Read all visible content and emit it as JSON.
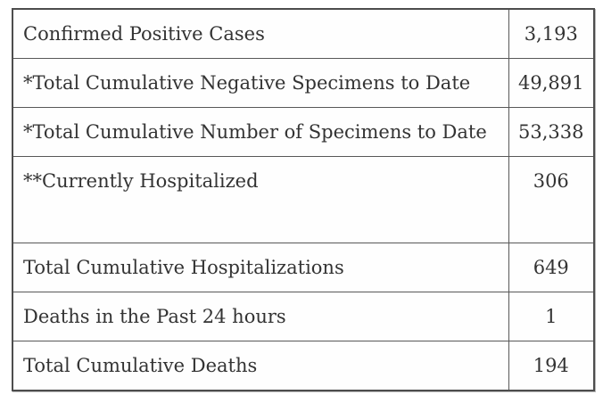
{
  "table": {
    "description": "case-statistics-table",
    "columns": [
      "metric",
      "count"
    ],
    "rows": [
      {
        "label": "Confirmed Positive Cases",
        "value": "3,193",
        "tall": false
      },
      {
        "label": "*Total Cumulative Negative Specimens to Date",
        "value": "49,891",
        "tall": false
      },
      {
        "label": "*Total Cumulative Number of Specimens to Date",
        "value": "53,338",
        "tall": false
      },
      {
        "label": "**Currently Hospitalized",
        "value": "306",
        "tall": true
      },
      {
        "label": "Total Cumulative Hospitalizations",
        "value": "649",
        "tall": false
      },
      {
        "label": "Deaths in the Past 24 hours",
        "value": "1",
        "tall": false
      },
      {
        "label": "Total Cumulative Deaths",
        "value": "194",
        "tall": false
      }
    ],
    "colors": {
      "text": "#333333",
      "border_outer": "#4d4d4d",
      "border_inner": "#585858",
      "background": "#fefefe"
    }
  }
}
